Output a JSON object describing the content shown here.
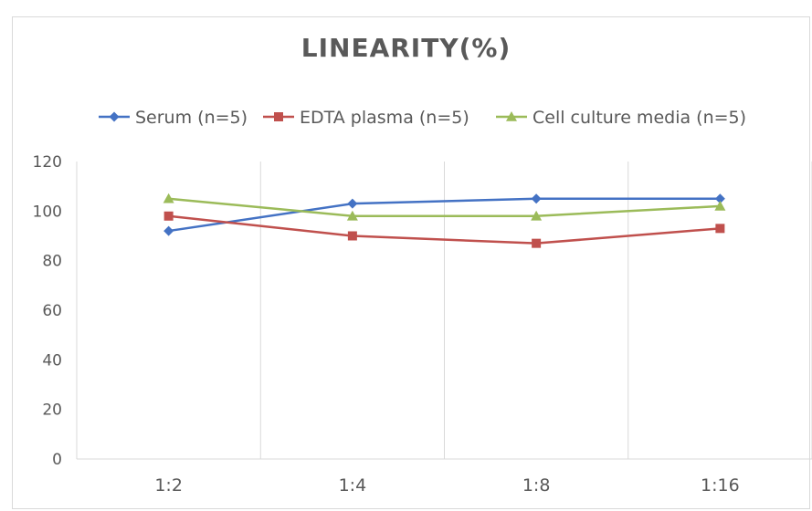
{
  "chart_data": {
    "type": "line",
    "title": "LINEARITY(%)",
    "xlabel": "",
    "ylabel": "",
    "categories": [
      "1:2",
      "1:4",
      "1:8",
      "1:16"
    ],
    "ylim": [
      0,
      120
    ],
    "yticks": [
      0,
      20,
      40,
      60,
      80,
      100,
      120
    ],
    "grid": "vertical",
    "legend_position": "top",
    "series": [
      {
        "name": "Serum (n=5)",
        "values": [
          92,
          103,
          105,
          105
        ],
        "color": "#4472c4",
        "marker": "diamond"
      },
      {
        "name": "EDTA plasma (n=5)",
        "values": [
          98,
          90,
          87,
          93
        ],
        "color": "#c0504d",
        "marker": "square"
      },
      {
        "name": "Cell culture media (n=5)",
        "values": [
          105,
          98,
          98,
          102
        ],
        "color": "#9bbb59",
        "marker": "triangle"
      }
    ]
  }
}
